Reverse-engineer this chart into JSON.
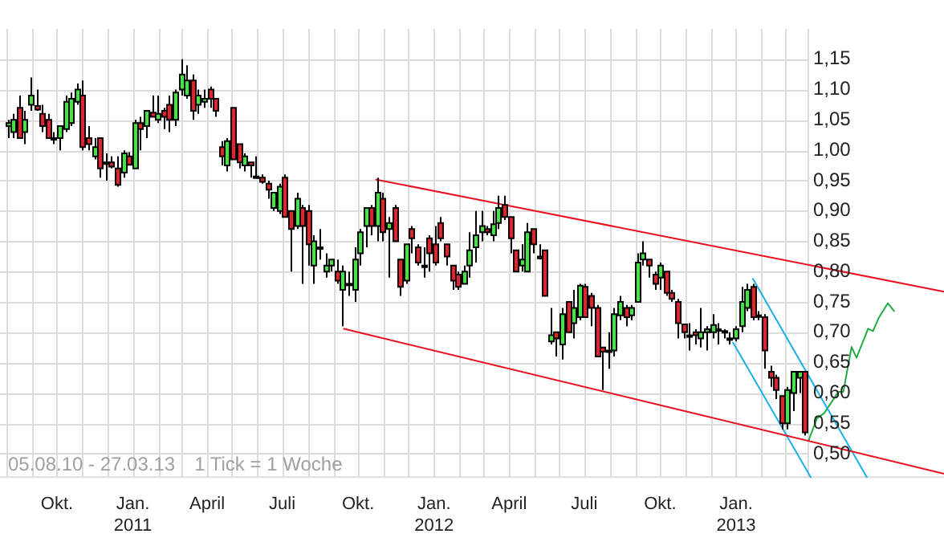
{
  "chart_data": {
    "type": "candlestick",
    "x": [
      "2010-08-02",
      "2010-08-09",
      "2010-08-16",
      "2010-08-23",
      "2010-08-30",
      "2010-09-06",
      "2010-09-13",
      "2010-09-20",
      "2010-09-27",
      "2010-10-04",
      "2010-10-11",
      "2010-10-18",
      "2010-10-25",
      "2010-11-01",
      "2010-11-08",
      "2010-11-15",
      "2010-11-22",
      "2010-11-29",
      "2010-12-06",
      "2010-12-13",
      "2010-12-20",
      "2010-12-27",
      "2011-01-03",
      "2011-01-10",
      "2011-01-17",
      "2011-01-24",
      "2011-01-31",
      "2011-02-07",
      "2011-02-14",
      "2011-02-21",
      "2011-02-28",
      "2011-03-07",
      "2011-03-14",
      "2011-03-21",
      "2011-03-28",
      "2011-04-04",
      "2011-04-11",
      "2011-04-18",
      "2011-04-25",
      "2011-05-02",
      "2011-05-09",
      "2011-05-16",
      "2011-05-23",
      "2011-05-30",
      "2011-06-06",
      "2011-06-13",
      "2011-06-20",
      "2011-06-27",
      "2011-07-04",
      "2011-07-11",
      "2011-07-18",
      "2011-07-25",
      "2011-08-01",
      "2011-08-08",
      "2011-08-15",
      "2011-08-22",
      "2011-08-29",
      "2011-09-05",
      "2011-09-12",
      "2011-09-19",
      "2011-09-26",
      "2011-10-03",
      "2011-10-10",
      "2011-10-17",
      "2011-10-24",
      "2011-10-31",
      "2011-11-07",
      "2011-11-14",
      "2011-11-21",
      "2011-11-28",
      "2011-12-05",
      "2011-12-12",
      "2011-12-19",
      "2011-12-26",
      "2012-01-02",
      "2012-01-09",
      "2012-01-16",
      "2012-01-23",
      "2012-01-30",
      "2012-02-06",
      "2012-02-13",
      "2012-02-20",
      "2012-02-27",
      "2012-03-05",
      "2012-03-12",
      "2012-03-19",
      "2012-03-26",
      "2012-04-02",
      "2012-04-09",
      "2012-04-16",
      "2012-04-23",
      "2012-04-30",
      "2012-05-07",
      "2012-05-14",
      "2012-05-21",
      "2012-05-28",
      "2012-06-04",
      "2012-06-11",
      "2012-06-18",
      "2012-06-25",
      "2012-07-02",
      "2012-07-09",
      "2012-07-16",
      "2012-07-23",
      "2012-07-30",
      "2012-08-06",
      "2012-08-13",
      "2012-08-20",
      "2012-08-27",
      "2012-09-03",
      "2012-09-10",
      "2012-09-17",
      "2012-09-24",
      "2012-10-01",
      "2012-10-08",
      "2012-10-15",
      "2012-10-22",
      "2012-10-29",
      "2012-11-05",
      "2012-11-12",
      "2012-11-19",
      "2012-11-26",
      "2012-12-03",
      "2012-12-10",
      "2012-12-17",
      "2012-12-24",
      "2012-12-31",
      "2013-01-07",
      "2013-01-14",
      "2013-01-21",
      "2013-01-28",
      "2013-02-04",
      "2013-02-11",
      "2013-02-18",
      "2013-02-25",
      "2013-03-04",
      "2013-03-11",
      "2013-03-18",
      "2013-03-25"
    ],
    "ohlc": [
      [
        1.04,
        1.05,
        1.02,
        1.045
      ],
      [
        1.03,
        1.06,
        1.02,
        1.05
      ],
      [
        1.07,
        1.09,
        1.02,
        1.02
      ],
      [
        1.03,
        1.065,
        1.01,
        1.05
      ],
      [
        1.075,
        1.12,
        1.065,
        1.09
      ],
      [
        1.073,
        1.1,
        1.065,
        1.067
      ],
      [
        1.06,
        1.075,
        1.03,
        1.04
      ],
      [
        1.05,
        1.06,
        1.02,
        1.02
      ],
      [
        1.02,
        1.03,
        1.01,
        1.02
      ],
      [
        1.02,
        1.04,
        1.0,
        1.04
      ],
      [
        1.035,
        1.09,
        1.03,
        1.08
      ],
      [
        1.045,
        1.095,
        1.04,
        1.085
      ],
      [
        1.08,
        1.11,
        1.075,
        1.1
      ],
      [
        1.09,
        1.115,
        1.0,
        1.005
      ],
      [
        1.02,
        1.04,
        1.0,
        1.01
      ],
      [
        0.99,
        1.02,
        0.985,
        1.005
      ],
      [
        1.02,
        1.02,
        0.955,
        0.97
      ],
      [
        0.98,
        0.995,
        0.95,
        0.98
      ],
      [
        0.98,
        0.99,
        0.97,
        0.973
      ],
      [
        0.97,
        0.99,
        0.94,
        0.943
      ],
      [
        0.963,
        1.0,
        0.955,
        0.995
      ],
      [
        0.99,
        0.997,
        0.975,
        0.976
      ],
      [
        0.97,
        1.05,
        0.97,
        1.045
      ],
      [
        1.045,
        1.055,
        1.0,
        1.035
      ],
      [
        1.04,
        1.065,
        1.02,
        1.065
      ],
      [
        1.062,
        1.09,
        1.055,
        1.055
      ],
      [
        1.05,
        1.09,
        1.045,
        1.06
      ],
      [
        1.065,
        1.07,
        1.035,
        1.055
      ],
      [
        1.075,
        1.09,
        1.03,
        1.05
      ],
      [
        1.05,
        1.1,
        1.04,
        1.095
      ],
      [
        1.1,
        1.15,
        1.09,
        1.125
      ],
      [
        1.09,
        1.14,
        1.085,
        1.115
      ],
      [
        1.115,
        1.125,
        1.05,
        1.065
      ],
      [
        1.075,
        1.1,
        1.06,
        1.09
      ],
      [
        1.08,
        1.1,
        1.07,
        1.085
      ],
      [
        1.1,
        1.105,
        1.07,
        1.085
      ],
      [
        1.085,
        1.085,
        1.055,
        1.065
      ],
      [
        1.005,
        1.015,
        0.975,
        0.99
      ],
      [
        0.975,
        1.02,
        0.965,
        1.015
      ],
      [
        1.07,
        1.07,
        0.985,
        0.985
      ],
      [
        1.01,
        1.01,
        0.97,
        0.98
      ],
      [
        0.975,
        0.995,
        0.965,
        0.99
      ],
      [
        0.98,
        0.98,
        0.955,
        0.975
      ],
      [
        0.957,
        0.99,
        0.955,
        0.957
      ],
      [
        0.955,
        0.96,
        0.945,
        0.948
      ],
      [
        0.945,
        0.95,
        0.92,
        0.935
      ],
      [
        0.905,
        0.93,
        0.9,
        0.93
      ],
      [
        0.9,
        0.945,
        0.895,
        0.94
      ],
      [
        0.955,
        0.96,
        0.89,
        0.89
      ],
      [
        0.9,
        0.9,
        0.8,
        0.87
      ],
      [
        0.875,
        0.93,
        0.87,
        0.92
      ],
      [
        0.905,
        0.91,
        0.78,
        0.875
      ],
      [
        0.9,
        0.91,
        0.81,
        0.845
      ],
      [
        0.81,
        0.86,
        0.78,
        0.85
      ],
      [
        0.84,
        0.87,
        0.82,
        0.84
      ],
      [
        0.8,
        0.83,
        0.79,
        0.81
      ],
      [
        0.81,
        0.82,
        0.8,
        0.82
      ],
      [
        0.8,
        0.82,
        0.78,
        0.785
      ],
      [
        0.77,
        0.81,
        0.71,
        0.8
      ],
      [
        0.78,
        0.8,
        0.76,
        0.78
      ],
      [
        0.77,
        0.84,
        0.75,
        0.82
      ],
      [
        0.83,
        0.87,
        0.81,
        0.865
      ],
      [
        0.875,
        0.905,
        0.84,
        0.905
      ],
      [
        0.905,
        0.91,
        0.86,
        0.875
      ],
      [
        0.875,
        0.955,
        0.85,
        0.93
      ],
      [
        0.92,
        0.93,
        0.85,
        0.865
      ],
      [
        0.87,
        0.89,
        0.79,
        0.88
      ],
      [
        0.905,
        0.91,
        0.85,
        0.85
      ],
      [
        0.82,
        0.82,
        0.76,
        0.775
      ],
      [
        0.785,
        0.845,
        0.78,
        0.845
      ],
      [
        0.87,
        0.875,
        0.83,
        0.855
      ],
      [
        0.84,
        0.845,
        0.81,
        0.815
      ],
      [
        0.81,
        0.84,
        0.79,
        0.81
      ],
      [
        0.855,
        0.86,
        0.8,
        0.83
      ],
      [
        0.845,
        0.875,
        0.81,
        0.815
      ],
      [
        0.88,
        0.89,
        0.85,
        0.855
      ],
      [
        0.845,
        0.845,
        0.81,
        0.825
      ],
      [
        0.81,
        0.81,
        0.77,
        0.785
      ],
      [
        0.795,
        0.8,
        0.77,
        0.775
      ],
      [
        0.78,
        0.81,
        0.78,
        0.8
      ],
      [
        0.81,
        0.865,
        0.79,
        0.835
      ],
      [
        0.84,
        0.9,
        0.815,
        0.86
      ],
      [
        0.865,
        0.9,
        0.85,
        0.875
      ],
      [
        0.87,
        0.875,
        0.86,
        0.865
      ],
      [
        0.86,
        0.9,
        0.85,
        0.878
      ],
      [
        0.88,
        0.925,
        0.87,
        0.905
      ],
      [
        0.91,
        0.925,
        0.885,
        0.89
      ],
      [
        0.89,
        0.89,
        0.83,
        0.855
      ],
      [
        0.835,
        0.835,
        0.8,
        0.8
      ],
      [
        0.81,
        0.845,
        0.8,
        0.82
      ],
      [
        0.8,
        0.88,
        0.8,
        0.865
      ],
      [
        0.87,
        0.87,
        0.83,
        0.845
      ],
      [
        0.822,
        0.845,
        0.82,
        0.825
      ],
      [
        0.835,
        0.835,
        0.76,
        0.76
      ],
      [
        0.685,
        0.74,
        0.68,
        0.695
      ],
      [
        0.7,
        0.7,
        0.66,
        0.69
      ],
      [
        0.68,
        0.74,
        0.655,
        0.73
      ],
      [
        0.75,
        0.75,
        0.7,
        0.7
      ],
      [
        0.715,
        0.77,
        0.69,
        0.74
      ],
      [
        0.725,
        0.78,
        0.72,
        0.777
      ],
      [
        0.775,
        0.78,
        0.725,
        0.725
      ],
      [
        0.76,
        0.765,
        0.71,
        0.74
      ],
      [
        0.74,
        0.745,
        0.66,
        0.66
      ],
      [
        0.675,
        0.675,
        0.605,
        0.668
      ],
      [
        0.67,
        0.7,
        0.64,
        0.67
      ],
      [
        0.67,
        0.74,
        0.66,
        0.73
      ],
      [
        0.728,
        0.76,
        0.72,
        0.75
      ],
      [
        0.74,
        0.745,
        0.71,
        0.725
      ],
      [
        0.728,
        0.745,
        0.72,
        0.74
      ],
      [
        0.75,
        0.83,
        0.75,
        0.815
      ],
      [
        0.82,
        0.85,
        0.81,
        0.83
      ],
      [
        0.82,
        0.82,
        0.79,
        0.81
      ],
      [
        0.795,
        0.8,
        0.77,
        0.78
      ],
      [
        0.79,
        0.815,
        0.77,
        0.81
      ],
      [
        0.8,
        0.8,
        0.76,
        0.765
      ],
      [
        0.765,
        0.77,
        0.75,
        0.755
      ],
      [
        0.75,
        0.755,
        0.69,
        0.715
      ],
      [
        0.713,
        0.713,
        0.69,
        0.7
      ],
      [
        0.695,
        0.715,
        0.67,
        0.695
      ],
      [
        0.7,
        0.705,
        0.68,
        0.695
      ],
      [
        0.69,
        0.74,
        0.675,
        0.7
      ],
      [
        0.7,
        0.71,
        0.67,
        0.705
      ],
      [
        0.7,
        0.73,
        0.69,
        0.712
      ],
      [
        0.705,
        0.715,
        0.68,
        0.704
      ],
      [
        0.7,
        0.705,
        0.69,
        0.702
      ],
      [
        0.69,
        0.7,
        0.68,
        0.69
      ],
      [
        0.69,
        0.71,
        0.685,
        0.705
      ],
      [
        0.71,
        0.775,
        0.7,
        0.75
      ],
      [
        0.74,
        0.78,
        0.735,
        0.77
      ],
      [
        0.775,
        0.78,
        0.72,
        0.725
      ],
      [
        0.728,
        0.735,
        0.72,
        0.728
      ],
      [
        0.725,
        0.73,
        0.64,
        0.67
      ],
      [
        0.635,
        0.645,
        0.61,
        0.625
      ],
      [
        0.625,
        0.63,
        0.59,
        0.605
      ],
      [
        0.595,
        0.595,
        0.54,
        0.55
      ],
      [
        0.55,
        0.61,
        0.54,
        0.605
      ],
      [
        0.6,
        0.635,
        0.57,
        0.635
      ],
      [
        0.625,
        0.635,
        0.6,
        0.635
      ],
      [
        0.635,
        0.635,
        0.53,
        0.535
      ]
    ],
    "series": [
      {
        "type": "line",
        "color": "#e8101e",
        "x": [
          "2011-10-22",
          "2013-09-10"
        ],
        "values": [
          0.952,
          0.767
        ]
      },
      {
        "type": "line",
        "color": "#e8101e",
        "x": [
          "2011-09-13",
          "2013-09-10"
        ],
        "values": [
          0.706,
          0.467
        ]
      },
      {
        "type": "line",
        "color": "#1ab0e8",
        "x": [
          "2013-01-21",
          "2013-06-09"
        ],
        "values": [
          0.789,
          0.46
        ]
      },
      {
        "type": "line",
        "color": "#1ab0e8",
        "x": [
          "2012-12-28",
          "2013-04-02"
        ],
        "values": [
          0.684,
          0.46
        ]
      },
      {
        "type": "line",
        "color": "#22aa44",
        "x": [
          "2013-03-30",
          "2013-04-09",
          "2013-04-18",
          "2013-05-05",
          "2013-05-11",
          "2013-05-21",
          "2013-05-27",
          "2013-06-10",
          "2013-06-16",
          "2013-06-23",
          "2013-07-04",
          "2013-07-12"
        ],
        "values": [
          0.522,
          0.558,
          0.567,
          0.602,
          0.602,
          0.676,
          0.658,
          0.706,
          0.702,
          0.724,
          0.748,
          0.734
        ]
      }
    ],
    "xlim": [
      "2010-07-24",
      "2013-09-10"
    ],
    "xticks": [
      {
        "value": "2010-08",
        "label": null
      },
      {
        "value": "2010-09",
        "label": null
      },
      {
        "value": "2010-10",
        "label": "Okt."
      },
      {
        "value": "2010-11",
        "label": null
      },
      {
        "value": "2010-12",
        "label": null
      },
      {
        "value": "2011-01",
        "label": "Jan.\n2011"
      },
      {
        "value": "2011-02",
        "label": null
      },
      {
        "value": "2011-03",
        "label": null
      },
      {
        "value": "2011-04",
        "label": "April"
      },
      {
        "value": "2011-05",
        "label": null
      },
      {
        "value": "2011-06",
        "label": null
      },
      {
        "value": "2011-07",
        "label": "Juli"
      },
      {
        "value": "2011-08",
        "label": null
      },
      {
        "value": "2011-09",
        "label": null
      },
      {
        "value": "2011-10",
        "label": "Okt."
      },
      {
        "value": "2011-11",
        "label": null
      },
      {
        "value": "2011-12",
        "label": null
      },
      {
        "value": "2012-01",
        "label": "Jan.\n2012"
      },
      {
        "value": "2012-02",
        "label": null
      },
      {
        "value": "2012-03",
        "label": null
      },
      {
        "value": "2012-04",
        "label": "April"
      },
      {
        "value": "2012-05",
        "label": null
      },
      {
        "value": "2012-06",
        "label": null
      },
      {
        "value": "2012-07",
        "label": "Juli"
      },
      {
        "value": "2012-08",
        "label": null
      },
      {
        "value": "2012-09",
        "label": null
      },
      {
        "value": "2012-10",
        "label": "Okt."
      },
      {
        "value": "2012-11",
        "label": null
      },
      {
        "value": "2012-12",
        "label": null
      },
      {
        "value": "2013-01",
        "label": "Jan.\n2013"
      },
      {
        "value": "2013-02",
        "label": null
      },
      {
        "value": "2013-03",
        "label": null
      }
    ],
    "ylim": [
      0.46,
      1.2
    ],
    "yticks": [
      {
        "value": 0.5,
        "label": "0,50"
      },
      {
        "value": 0.55,
        "label": "0,55"
      },
      {
        "value": 0.6,
        "label": "0,60"
      },
      {
        "value": 0.65,
        "label": "0,65"
      },
      {
        "value": 0.7,
        "label": "0,70"
      },
      {
        "value": 0.75,
        "label": "0,75"
      },
      {
        "value": 0.8,
        "label": "0,80"
      },
      {
        "value": 0.85,
        "label": "0,85"
      },
      {
        "value": 0.9,
        "label": "0,90"
      },
      {
        "value": 0.95,
        "label": "0,95"
      },
      {
        "value": 1.0,
        "label": "1,00"
      },
      {
        "value": 1.05,
        "label": "1,05"
      },
      {
        "value": 1.1,
        "label": "1,10"
      },
      {
        "value": 1.15,
        "label": "1,15"
      }
    ],
    "grid": true,
    "annotations": [
      "05.08.10 - 27.03.13",
      "1 Tick = 1 Woche"
    ]
  }
}
